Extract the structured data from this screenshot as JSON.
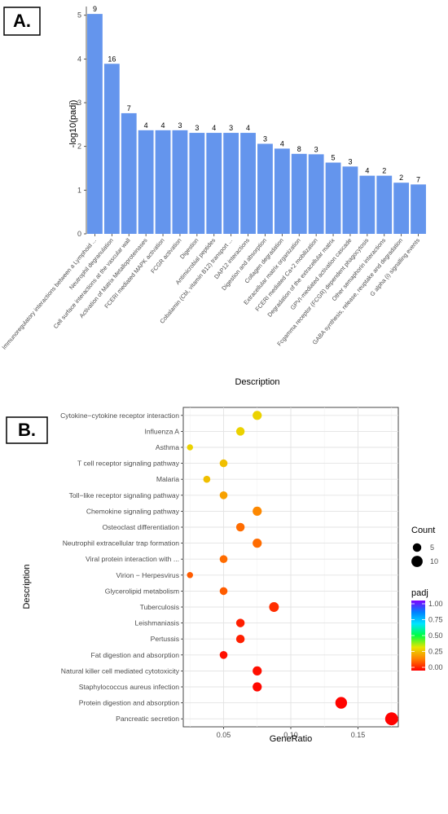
{
  "panels": {
    "a_label": "A.",
    "b_label": "B."
  },
  "chart_data": [
    {
      "type": "bar",
      "title": "",
      "xlabel": "Description",
      "ylabel": "-log10(padj)",
      "ylim": [
        0,
        5.2
      ],
      "yticks": [
        0,
        1,
        2,
        3,
        4,
        5
      ],
      "grid": false,
      "bar_color": "#6495ED",
      "categories": [
        "Immunoregulatory interactions between a Lymphoid ...",
        "Neutrophil degranulation",
        "Cell surface interactions at the vascular wall",
        "Activation of Matrix Metalloproteinases",
        "FCERI mediated MAPK activation",
        "FCGR activation",
        "Digestion",
        "Antimicrobial peptides",
        "Cobalamin (Cbl, vitamin B12) transport ...",
        "DAP12 interactions",
        "Digestion and absorption",
        "Collagen degradation",
        "Extracellular matrix organization",
        "FCERI mediated Ca+2 mobilization",
        "Degradation of the extracellular matrix",
        "GPVI-mediated activation cascade",
        "Fcgamma receptor (FCGR) dependent phagocytosis",
        "Other semaphorin interactions",
        "GABA synthesis, release, reuptake and degradation",
        "G alpha (i) signalling events"
      ],
      "values": [
        5.03,
        3.89,
        2.76,
        2.37,
        2.37,
        2.37,
        2.31,
        2.31,
        2.31,
        2.31,
        2.06,
        1.95,
        1.83,
        1.82,
        1.63,
        1.54,
        1.33,
        1.33,
        1.17,
        1.13
      ],
      "labels": [
        "9",
        "16",
        "7",
        "4",
        "4",
        "3",
        "3",
        "4",
        "3",
        "4",
        "3",
        "4",
        "8",
        "3",
        "5",
        "3",
        "4",
        "2",
        "2",
        "7"
      ]
    },
    {
      "type": "scatter",
      "title": "",
      "xlabel": "GeneRatio",
      "ylabel": "Description",
      "xlim": [
        0.02,
        0.18
      ],
      "xticks": [
        0.05,
        0.1,
        0.15
      ],
      "xtick_labels": [
        "0.05",
        "0.10",
        "0.15"
      ],
      "grid": true,
      "categories": [
        "Cytokine−cytokine receptor interaction",
        "Influenza A",
        "Asthma",
        "T cell receptor signaling pathway",
        "Malaria",
        "Toll−like receptor signaling pathway",
        "Chemokine signaling pathway",
        "Osteoclast differentiation",
        "Neutrophil extracellular trap formation",
        "Viral protein interaction with ...",
        "Virion − Herpesvirus",
        "Glycerolipid metabolism",
        "Tuberculosis",
        "Leishmaniasis",
        "Pertussis",
        "Fat digestion and absorption",
        "Natural killer cell mediated cytotoxicity",
        "Staphylococcus aureus infection",
        "Protein digestion and absorption",
        "Pancreatic secretion"
      ],
      "x": [
        0.075,
        0.0625,
        0.025,
        0.05,
        0.0375,
        0.05,
        0.075,
        0.0625,
        0.075,
        0.05,
        0.025,
        0.05,
        0.0875,
        0.0625,
        0.0625,
        0.05,
        0.075,
        0.075,
        0.1375,
        0.175
      ],
      "count": [
        6,
        5,
        2,
        4,
        3,
        4,
        6,
        5,
        6,
        4,
        2,
        4,
        7,
        5,
        5,
        4,
        6,
        6,
        11,
        14
      ],
      "padj": [
        0.3,
        0.3,
        0.3,
        0.27,
        0.27,
        0.22,
        0.18,
        0.14,
        0.14,
        0.14,
        0.12,
        0.12,
        0.06,
        0.04,
        0.04,
        0.02,
        0.02,
        0.01,
        0.005,
        0.002
      ],
      "legend": {
        "placement": "right",
        "size_title": "Count",
        "size_entries": [
          {
            "label": "5",
            "value": 5
          },
          {
            "label": "10",
            "value": 10
          }
        ],
        "color_title": "padj",
        "color_ticks": [
          "1.00",
          "0.75",
          "0.50",
          "0.25",
          "0.00"
        ],
        "color_stops": [
          "#ff0000",
          "#ff8000",
          "#e6e600",
          "#00ff40",
          "#00e6ff",
          "#0080ff",
          "#8000ff"
        ]
      }
    }
  ]
}
